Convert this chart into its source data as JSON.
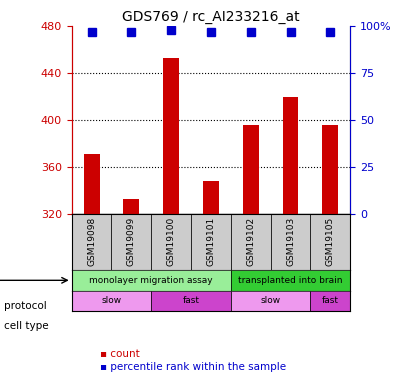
{
  "title": "GDS769 / rc_AI233216_at",
  "samples": [
    "GSM19098",
    "GSM19099",
    "GSM19100",
    "GSM19101",
    "GSM19102",
    "GSM19103",
    "GSM19105"
  ],
  "bar_values": [
    371,
    333,
    453,
    348,
    396,
    420,
    396
  ],
  "bar_base": 320,
  "percentile_values": [
    97,
    97,
    98,
    97,
    97,
    97,
    97
  ],
  "ylim_left": [
    320,
    480
  ],
  "ylim_right": [
    0,
    100
  ],
  "yticks_left": [
    320,
    360,
    400,
    440,
    480
  ],
  "yticks_right": [
    0,
    25,
    50,
    75,
    100
  ],
  "ytick_labels_right": [
    "0",
    "25",
    "50",
    "75",
    "100%"
  ],
  "bar_color": "#cc0000",
  "percentile_color": "#0000cc",
  "grid_color": "#000000",
  "protocol_groups": [
    {
      "label": "monolayer migration assay",
      "start": 0,
      "end": 4,
      "color": "#99ee99"
    },
    {
      "label": "transplanted into brain",
      "start": 4,
      "end": 7,
      "color": "#33cc33"
    }
  ],
  "cell_type_groups": [
    {
      "label": "slow",
      "start": 0,
      "end": 2,
      "color": "#ee99ee"
    },
    {
      "label": "fast",
      "start": 2,
      "end": 4,
      "color": "#cc44cc"
    },
    {
      "label": "slow",
      "start": 4,
      "end": 6,
      "color": "#ee99ee"
    },
    {
      "label": "fast",
      "start": 6,
      "end": 7,
      "color": "#cc44cc"
    }
  ],
  "legend_items": [
    {
      "label": "count",
      "color": "#cc0000"
    },
    {
      "label": "percentile rank within the sample",
      "color": "#0000cc"
    }
  ],
  "sample_box_color": "#cccccc",
  "left_axis_color": "#cc0000",
  "right_axis_color": "#0000cc"
}
